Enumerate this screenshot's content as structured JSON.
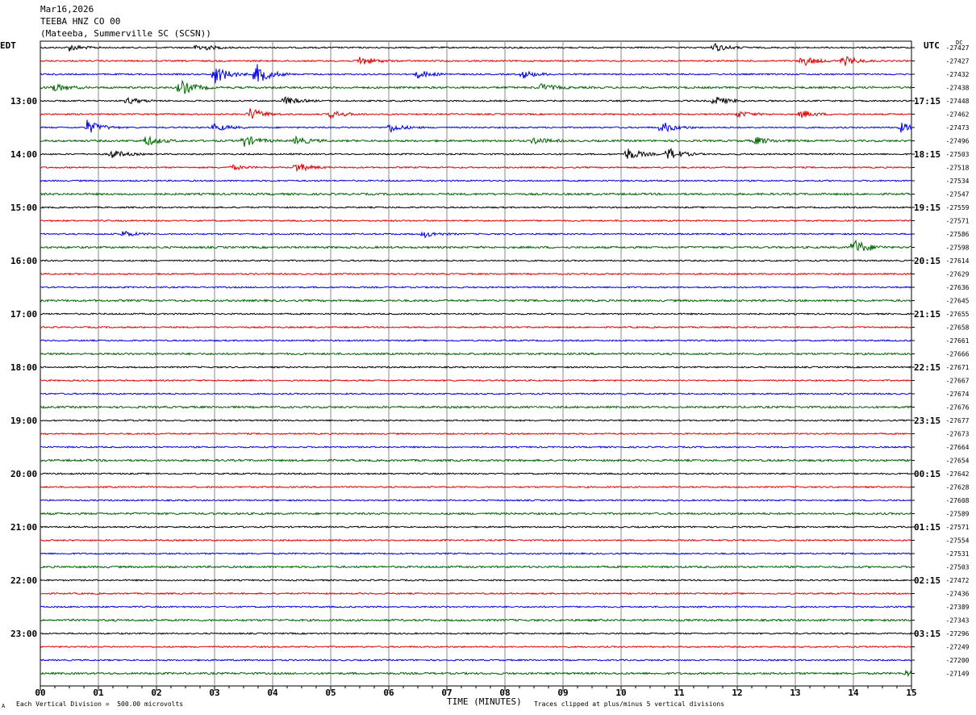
{
  "header": {
    "date": "Mar16,2026",
    "station": "TEEBA HNZ CO 00",
    "location": "(Mateeba, Summerville SC (SCSN))"
  },
  "left_tz": "EDT",
  "right_tz": "UTC",
  "dc_label": "DC",
  "footer": {
    "scale_note": "Each Vertical Division =  500.00 microvolts",
    "clip_note": "Traces clipped at plus/minus 5 vertical divisions",
    "corner_mark": "A"
  },
  "chart_data": {
    "type": "line",
    "xlabel": "TIME (MINUTES)",
    "x_ticks": [
      "00",
      "01",
      "02",
      "03",
      "04",
      "05",
      "06",
      "07",
      "08",
      "09",
      "10",
      "11",
      "12",
      "13",
      "14",
      "15"
    ],
    "xlim": [
      0,
      15
    ],
    "trace_colors": [
      "#000000",
      "#e00000",
      "#0000e0",
      "#006400"
    ],
    "left_hour_labels": [
      "13:00",
      "14:00",
      "15:00",
      "16:00",
      "17:00",
      "18:00",
      "19:00",
      "20:00",
      "21:00",
      "22:00",
      "23:00"
    ],
    "right_hour_labels": [
      "17:15",
      "18:15",
      "19:15",
      "20:15",
      "21:15",
      "22:15",
      "23:15",
      "00:15",
      "01:15",
      "02:15",
      "03:15"
    ],
    "dc_offsets": [
      "-27427",
      "-27427",
      "-27432",
      "-27438",
      "-27448",
      "-27462",
      "-27473",
      "-27496",
      "-27503",
      "-27518",
      "-27534",
      "-27547",
      "-27559",
      "-27571",
      "-27586",
      "-27598",
      "-27614",
      "-27629",
      "-27636",
      "-27645",
      "-27655",
      "-27658",
      "-27661",
      "-27666",
      "-27671",
      "-27667",
      "-27674",
      "-27676",
      "-27677",
      "-27673",
      "-27664",
      "-27654",
      "-27642",
      "-27628",
      "-27608",
      "-27589",
      "-27571",
      "-27554",
      "-27531",
      "-27503",
      "-27472",
      "-27436",
      "-27389",
      "-27343",
      "-27296",
      "-27249",
      "-27200",
      "-27149"
    ],
    "trace_count": 48,
    "minutes_per_trace": 15,
    "events": [
      {
        "trace": 0,
        "minute": 0.5,
        "amp": 4
      },
      {
        "trace": 0,
        "minute": 2.7,
        "amp": 5
      },
      {
        "trace": 0,
        "minute": 11.6,
        "amp": 5
      },
      {
        "trace": 1,
        "minute": 5.5,
        "amp": 6
      },
      {
        "trace": 1,
        "minute": 13.1,
        "amp": 7
      },
      {
        "trace": 1,
        "minute": 13.8,
        "amp": 7
      },
      {
        "trace": 2,
        "minute": 3.0,
        "amp": 12
      },
      {
        "trace": 2,
        "minute": 3.7,
        "amp": 14
      },
      {
        "trace": 2,
        "minute": 6.5,
        "amp": 5
      },
      {
        "trace": 2,
        "minute": 8.3,
        "amp": 5
      },
      {
        "trace": 3,
        "minute": 0.2,
        "amp": 5
      },
      {
        "trace": 3,
        "minute": 2.4,
        "amp": 10
      },
      {
        "trace": 3,
        "minute": 8.6,
        "amp": 5
      },
      {
        "trace": 4,
        "minute": 1.5,
        "amp": 4
      },
      {
        "trace": 4,
        "minute": 4.2,
        "amp": 5
      },
      {
        "trace": 4,
        "minute": 11.6,
        "amp": 6
      },
      {
        "trace": 5,
        "minute": 3.6,
        "amp": 8
      },
      {
        "trace": 5,
        "minute": 5.0,
        "amp": 5
      },
      {
        "trace": 5,
        "minute": 12.0,
        "amp": 4
      },
      {
        "trace": 5,
        "minute": 13.1,
        "amp": 5
      },
      {
        "trace": 6,
        "minute": 0.8,
        "amp": 9
      },
      {
        "trace": 6,
        "minute": 3.0,
        "amp": 5
      },
      {
        "trace": 6,
        "minute": 6.0,
        "amp": 6
      },
      {
        "trace": 6,
        "minute": 10.7,
        "amp": 7
      },
      {
        "trace": 6,
        "minute": 14.8,
        "amp": 6
      },
      {
        "trace": 7,
        "minute": 1.8,
        "amp": 6
      },
      {
        "trace": 7,
        "minute": 3.5,
        "amp": 7
      },
      {
        "trace": 7,
        "minute": 4.4,
        "amp": 5
      },
      {
        "trace": 7,
        "minute": 8.5,
        "amp": 4
      },
      {
        "trace": 7,
        "minute": 12.3,
        "amp": 5
      },
      {
        "trace": 8,
        "minute": 1.2,
        "amp": 6
      },
      {
        "trace": 8,
        "minute": 10.1,
        "amp": 8
      },
      {
        "trace": 8,
        "minute": 10.8,
        "amp": 8
      },
      {
        "trace": 9,
        "minute": 4.4,
        "amp": 6
      },
      {
        "trace": 9,
        "minute": 3.3,
        "amp": 3
      },
      {
        "trace": 14,
        "minute": 1.4,
        "amp": 4
      },
      {
        "trace": 14,
        "minute": 6.6,
        "amp": 4
      },
      {
        "trace": 15,
        "minute": 14.0,
        "amp": 10
      },
      {
        "trace": 47,
        "minute": 14.9,
        "amp": 3
      }
    ]
  }
}
